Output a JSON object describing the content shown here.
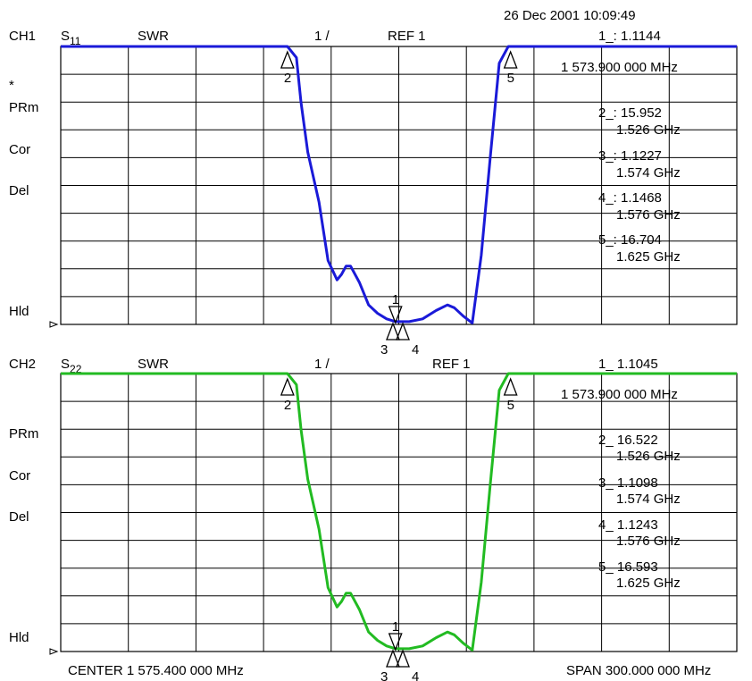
{
  "header": {
    "timestamp": "26 Dec 2001  10:09:49"
  },
  "footer": {
    "center": "CENTER 1 575.400 000 MHz",
    "span": "SPAN  300.000 000 MHz"
  },
  "colors": {
    "ch1_trace": "#1a1ad8",
    "ch2_trace": "#22bb22",
    "grid": "#000000"
  },
  "chart_data": [
    {
      "type": "line",
      "channel": "CH1",
      "param": "S",
      "param_sub": "11",
      "format": "SWR",
      "scale": "1 /",
      "ref": "REF 1",
      "side_labels": [
        "*",
        "PRm",
        "Cor",
        "Del",
        "Hld"
      ],
      "active_marker": {
        "label": "1_: 1.1144",
        "freq": "1 573.900 000 MHz"
      },
      "marker_list": [
        {
          "label": "2_: 15.952",
          "freq": "1.526 GHz"
        },
        {
          "label": "3_: 1.1227",
          "freq": "1.574 GHz"
        },
        {
          "label": "4_: 1.1468",
          "freq": "1.576 GHz"
        },
        {
          "label": "5_: 16.704",
          "freq": "1.625 GHz"
        }
      ],
      "markers": [
        {
          "id": "2",
          "x": 1526,
          "y": 11,
          "dir": "up"
        },
        {
          "id": "5",
          "x": 1625,
          "y": 11,
          "dir": "up"
        },
        {
          "id": "1",
          "x": 1573.9,
          "y": 1.1144,
          "dir": "down"
        },
        {
          "id": "3",
          "x": 1574,
          "y": 1.1227,
          "dir": "up"
        },
        {
          "id": "4",
          "x": 1576,
          "y": 1.1468,
          "dir": "up"
        }
      ],
      "x": [
        1425.4,
        1526,
        1530,
        1532,
        1535,
        1540,
        1544,
        1548,
        1550,
        1552,
        1554,
        1558,
        1562,
        1566,
        1570,
        1574,
        1580,
        1586,
        1592,
        1597,
        1600,
        1604,
        1608,
        1612,
        1616,
        1620,
        1624,
        1626,
        1725.4
      ],
      "values": [
        11,
        11,
        10.6,
        9,
        7.2,
        5.4,
        3.3,
        2.6,
        2.8,
        3.1,
        3.1,
        2.5,
        1.7,
        1.4,
        1.2,
        1.1,
        1.1,
        1.2,
        1.5,
        1.7,
        1.6,
        1.3,
        1.05,
        3.5,
        7,
        10.4,
        11,
        11,
        11
      ],
      "xlim": [
        1425.4,
        1725.4
      ],
      "ylim": [
        1,
        11
      ],
      "grid": true
    },
    {
      "type": "line",
      "channel": "CH2",
      "param": "S",
      "param_sub": "22",
      "format": "SWR",
      "scale": "1 /",
      "ref": "REF 1",
      "side_labels": [
        "PRm",
        "Cor",
        "Del",
        "Hld"
      ],
      "active_marker": {
        "label": "1_  1.1045",
        "freq": "1 573.900 000 MHz"
      },
      "marker_list": [
        {
          "label": "2_  16.522",
          "freq": "1.526 GHz"
        },
        {
          "label": "3_  1.1098",
          "freq": "1.574 GHz"
        },
        {
          "label": "4_  1.1243",
          "freq": "1.576 GHz"
        },
        {
          "label": "5_  16.593",
          "freq": "1.625 GHz"
        }
      ],
      "markers": [
        {
          "id": "2",
          "x": 1526,
          "y": 11,
          "dir": "up"
        },
        {
          "id": "5",
          "x": 1625,
          "y": 11,
          "dir": "up"
        },
        {
          "id": "1",
          "x": 1573.9,
          "y": 1.1045,
          "dir": "down"
        },
        {
          "id": "3",
          "x": 1574,
          "y": 1.1098,
          "dir": "up"
        },
        {
          "id": "4",
          "x": 1576,
          "y": 1.1243,
          "dir": "up"
        }
      ],
      "x": [
        1425.4,
        1526,
        1530,
        1532,
        1535,
        1540,
        1544,
        1548,
        1550,
        1552,
        1554,
        1558,
        1562,
        1566,
        1570,
        1574,
        1580,
        1586,
        1592,
        1597,
        1600,
        1604,
        1608,
        1612,
        1616,
        1620,
        1624,
        1626,
        1725.4
      ],
      "values": [
        11,
        11,
        10.6,
        9,
        7.2,
        5.4,
        3.3,
        2.6,
        2.8,
        3.1,
        3.1,
        2.5,
        1.7,
        1.4,
        1.2,
        1.1,
        1.1,
        1.2,
        1.5,
        1.7,
        1.6,
        1.3,
        1.05,
        3.5,
        7,
        10.4,
        11,
        11,
        11
      ],
      "xlim": [
        1425.4,
        1725.4
      ],
      "ylim": [
        1,
        11
      ],
      "grid": true
    }
  ]
}
